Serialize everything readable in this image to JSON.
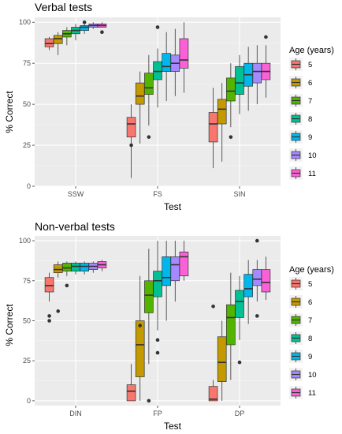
{
  "colors": {
    "panel": "#ebebeb",
    "grid_major": "#ffffff",
    "grid_minor": "#f5f5f5",
    "age_5": "#F8766D",
    "age_6": "#C49A00",
    "age_7": "#53B400",
    "age_8": "#00C094",
    "age_9": "#00B6EB",
    "age_10": "#A58AFF",
    "age_11": "#FB61D7"
  },
  "chart_data": [
    {
      "type": "box",
      "title": "Verbal tests",
      "xlabel": "Test",
      "ylabel": "% Correct",
      "ylim": [
        0,
        103
      ],
      "yticks": [
        0,
        25,
        50,
        75,
        100
      ],
      "categories": [
        "SSW",
        "FS",
        "SIN"
      ],
      "legend_title": "Age (years)",
      "legend_position": "right",
      "groups": [
        "5",
        "6",
        "7",
        "8",
        "9",
        "10",
        "11"
      ],
      "boxes": [
        {
          "test": "SSW",
          "age": "5",
          "min": 83,
          "q1": 85,
          "median": 87,
          "q3": 90,
          "max": 91,
          "outliers": []
        },
        {
          "test": "SSW",
          "age": "6",
          "min": 80,
          "q1": 87,
          "median": 90,
          "q3": 92,
          "max": 94,
          "outliers": []
        },
        {
          "test": "SSW",
          "age": "7",
          "min": 86,
          "q1": 91,
          "median": 93,
          "q3": 95,
          "max": 97,
          "outliers": []
        },
        {
          "test": "SSW",
          "age": "8",
          "min": 89,
          "q1": 93,
          "median": 95,
          "q3": 97,
          "max": 99,
          "outliers": []
        },
        {
          "test": "SSW",
          "age": "9",
          "min": 93,
          "q1": 95,
          "median": 97,
          "q3": 98,
          "max": 99,
          "outliers": [
            100
          ]
        },
        {
          "test": "SSW",
          "age": "10",
          "min": 96,
          "q1": 97,
          "median": 98,
          "q3": 99,
          "max": 100,
          "outliers": []
        },
        {
          "test": "SSW",
          "age": "11",
          "min": 97,
          "q1": 97,
          "median": 98,
          "q3": 99,
          "max": 100,
          "outliers": [
            94
          ]
        },
        {
          "test": "FS",
          "age": "5",
          "min": 5,
          "q1": 30,
          "median": 38,
          "q3": 42,
          "max": 50,
          "outliers": [
            25
          ]
        },
        {
          "test": "FS",
          "age": "6",
          "min": 26,
          "q1": 50,
          "median": 55,
          "q3": 63,
          "max": 70,
          "outliers": []
        },
        {
          "test": "FS",
          "age": "7",
          "min": 37,
          "q1": 56,
          "median": 60,
          "q3": 69,
          "max": 80,
          "outliers": [
            30
          ]
        },
        {
          "test": "FS",
          "age": "8",
          "min": 48,
          "q1": 65,
          "median": 70,
          "q3": 76,
          "max": 84,
          "outliers": [
            97
          ]
        },
        {
          "test": "FS",
          "age": "9",
          "min": 52,
          "q1": 70,
          "median": 73,
          "q3": 81,
          "max": 94,
          "outliers": []
        },
        {
          "test": "FS",
          "age": "10",
          "min": 55,
          "q1": 70,
          "median": 75,
          "q3": 80,
          "max": 96,
          "outliers": []
        },
        {
          "test": "FS",
          "age": "11",
          "min": 57,
          "q1": 72,
          "median": 77,
          "q3": 90,
          "max": 100,
          "outliers": []
        },
        {
          "test": "SIN",
          "age": "5",
          "min": 11,
          "q1": 27,
          "median": 38,
          "q3": 45,
          "max": 60,
          "outliers": []
        },
        {
          "test": "SIN",
          "age": "6",
          "min": 15,
          "q1": 38,
          "median": 47,
          "q3": 53,
          "max": 63,
          "outliers": []
        },
        {
          "test": "SIN",
          "age": "7",
          "min": 36,
          "q1": 52,
          "median": 58,
          "q3": 66,
          "max": 75,
          "outliers": [
            30
          ]
        },
        {
          "test": "SIN",
          "age": "8",
          "min": 44,
          "q1": 56,
          "median": 63,
          "q3": 73,
          "max": 80,
          "outliers": []
        },
        {
          "test": "SIN",
          "age": "9",
          "min": 46,
          "q1": 61,
          "median": 68,
          "q3": 75,
          "max": 85,
          "outliers": []
        },
        {
          "test": "SIN",
          "age": "10",
          "min": 50,
          "q1": 63,
          "median": 70,
          "q3": 75,
          "max": 86,
          "outliers": []
        },
        {
          "test": "SIN",
          "age": "11",
          "min": 54,
          "q1": 65,
          "median": 70,
          "q3": 75,
          "max": 86,
          "outliers": [
            91
          ]
        }
      ]
    },
    {
      "type": "box",
      "title": "Non-verbal tests",
      "xlabel": "Test",
      "ylabel": "% Correct",
      "ylim": [
        -3,
        103
      ],
      "yticks": [
        0,
        25,
        50,
        75,
        100
      ],
      "categories": [
        "DIN",
        "FP",
        "DP"
      ],
      "legend_title": "Age (years)",
      "legend_position": "right",
      "groups": [
        "5",
        "6",
        "7",
        "8",
        "9",
        "10",
        "11"
      ],
      "boxes": [
        {
          "test": "DIN",
          "age": "5",
          "min": 62,
          "q1": 68,
          "median": 72,
          "q3": 77,
          "max": 80,
          "outliers": [
            53,
            50
          ]
        },
        {
          "test": "DIN",
          "age": "6",
          "min": 77,
          "q1": 80,
          "median": 82,
          "q3": 85,
          "max": 87,
          "outliers": [
            56
          ]
        },
        {
          "test": "DIN",
          "age": "7",
          "min": 78,
          "q1": 81,
          "median": 83,
          "q3": 86,
          "max": 87,
          "outliers": [
            72
          ]
        },
        {
          "test": "DIN",
          "age": "8",
          "min": 79,
          "q1": 81,
          "median": 84,
          "q3": 86,
          "max": 87,
          "outliers": []
        },
        {
          "test": "DIN",
          "age": "9",
          "min": 79,
          "q1": 81,
          "median": 84,
          "q3": 86,
          "max": 87,
          "outliers": []
        },
        {
          "test": "DIN",
          "age": "10",
          "min": 80,
          "q1": 82,
          "median": 84,
          "q3": 86,
          "max": 87,
          "outliers": []
        },
        {
          "test": "DIN",
          "age": "11",
          "min": 81,
          "q1": 83,
          "median": 85,
          "q3": 87,
          "max": 88,
          "outliers": []
        },
        {
          "test": "FP",
          "age": "5",
          "min": 0,
          "q1": 0,
          "median": 6,
          "q3": 10,
          "max": 23,
          "outliers": []
        },
        {
          "test": "FP",
          "age": "6",
          "min": 0,
          "q1": 15,
          "median": 35,
          "q3": 50,
          "max": 78,
          "outliers": [
            47
          ]
        },
        {
          "test": "FP",
          "age": "7",
          "min": 23,
          "q1": 55,
          "median": 66,
          "q3": 75,
          "max": 95,
          "outliers": [
            0
          ]
        },
        {
          "test": "FP",
          "age": "8",
          "min": 44,
          "q1": 65,
          "median": 75,
          "q3": 81,
          "max": 100,
          "outliers": [
            38,
            30
          ]
        },
        {
          "test": "FP",
          "age": "9",
          "min": 50,
          "q1": 72,
          "median": 77,
          "q3": 90,
          "max": 100,
          "outliers": []
        },
        {
          "test": "FP",
          "age": "10",
          "min": 62,
          "q1": 75,
          "median": 85,
          "q3": 90,
          "max": 100,
          "outliers": []
        },
        {
          "test": "FP",
          "age": "11",
          "min": 75,
          "q1": 78,
          "median": 90,
          "q3": 93,
          "max": 100,
          "outliers": []
        },
        {
          "test": "DP",
          "age": "5",
          "min": 0,
          "q1": 0,
          "median": 1,
          "q3": 9,
          "max": 13,
          "outliers": [
            59
          ]
        },
        {
          "test": "DP",
          "age": "6",
          "min": 0,
          "q1": 12,
          "median": 24,
          "q3": 40,
          "max": 50,
          "outliers": []
        },
        {
          "test": "DP",
          "age": "7",
          "min": 13,
          "q1": 35,
          "median": 52,
          "q3": 60,
          "max": 80,
          "outliers": []
        },
        {
          "test": "DP",
          "age": "8",
          "min": 38,
          "q1": 52,
          "median": 62,
          "q3": 69,
          "max": 78,
          "outliers": [
            24
          ]
        },
        {
          "test": "DP",
          "age": "9",
          "min": 48,
          "q1": 65,
          "median": 70,
          "q3": 79,
          "max": 88,
          "outliers": []
        },
        {
          "test": "DP",
          "age": "10",
          "min": 62,
          "q1": 72,
          "median": 76,
          "q3": 82,
          "max": 88,
          "outliers": [
            100,
            53
          ]
        },
        {
          "test": "DP",
          "age": "11",
          "min": 63,
          "q1": 68,
          "median": 74,
          "q3": 82,
          "max": 90,
          "outliers": []
        }
      ]
    }
  ]
}
